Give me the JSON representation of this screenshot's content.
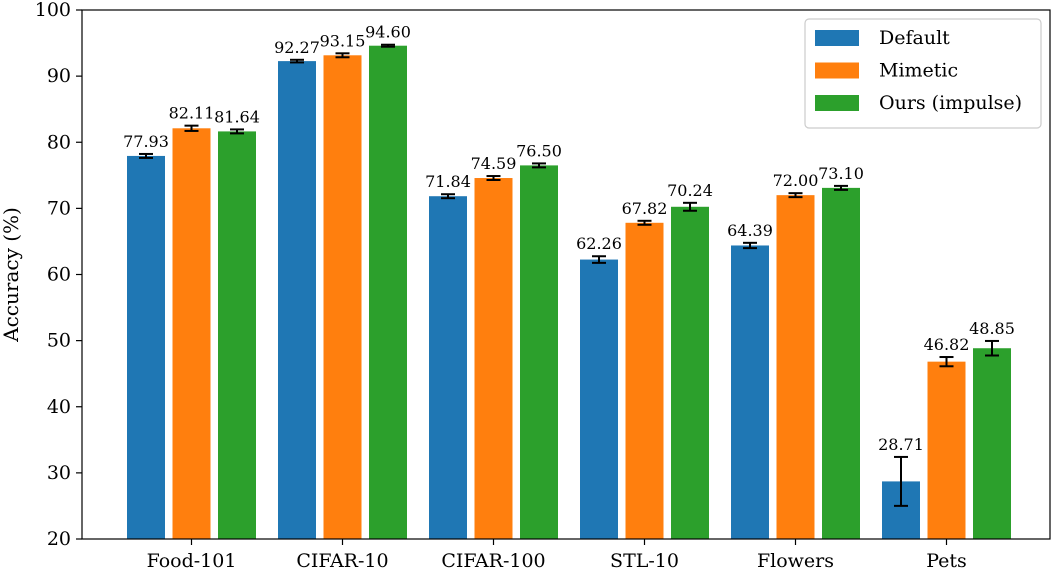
{
  "chart_data": {
    "type": "bar",
    "title": "",
    "xlabel": "",
    "ylabel": "Accuracy (%)",
    "ylim": [
      20,
      100
    ],
    "yticks": [
      20,
      30,
      40,
      50,
      60,
      70,
      80,
      90,
      100
    ],
    "categories": [
      "Food-101",
      "CIFAR-10",
      "CIFAR-100",
      "STL-10",
      "Flowers",
      "Pets"
    ],
    "grid": false,
    "legend_position": "top-right",
    "series": [
      {
        "name": "Default",
        "color": "#1f77b4",
        "values": [
          77.93,
          92.27,
          71.84,
          62.26,
          64.39,
          28.71
        ],
        "labels": [
          "77.93",
          "92.27",
          "71.84",
          "62.26",
          "64.39",
          "28.71"
        ],
        "errors": [
          0.3,
          0.2,
          0.3,
          0.5,
          0.4,
          3.7
        ]
      },
      {
        "name": "Mimetic",
        "color": "#ff7f0e",
        "values": [
          82.11,
          93.15,
          74.59,
          67.82,
          72.0,
          46.82
        ],
        "labels": [
          "82.11",
          "93.15",
          "74.59",
          "67.82",
          "72.00",
          "46.82"
        ],
        "errors": [
          0.4,
          0.3,
          0.3,
          0.3,
          0.3,
          0.7
        ]
      },
      {
        "name": "Ours (impulse)",
        "color": "#2ca02c",
        "values": [
          81.64,
          94.6,
          76.5,
          70.24,
          73.1,
          48.85
        ],
        "labels": [
          "81.64",
          "94.60",
          "76.50",
          "70.24",
          "73.10",
          "48.85"
        ],
        "errors": [
          0.3,
          0.15,
          0.3,
          0.6,
          0.3,
          1.1
        ]
      }
    ]
  }
}
